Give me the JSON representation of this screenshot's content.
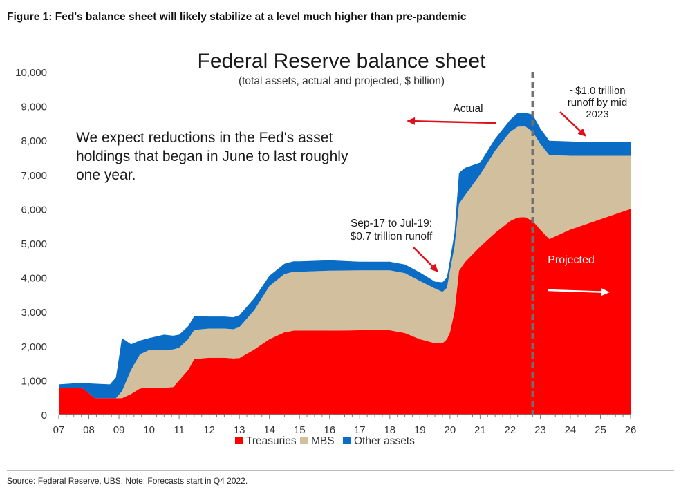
{
  "figure_title": "Figure 1: Fed's balance sheet will likely stabilize at a level much higher than pre-pandemic",
  "source_note": "Source: Federal Reserve, UBS. Note: Forecasts start in Q4 2022.",
  "colors": {
    "treasuries": "#ff0000",
    "mbs": "#d2bf9e",
    "other": "#0a6cc4",
    "arrow": "#e0101a",
    "divider": "#707070"
  },
  "chart_data": {
    "type": "area",
    "stacked": true,
    "title": "Federal Reserve balance sheet",
    "subtitle": "(total assets, actual and projected, $ billion)",
    "xlabel": "",
    "ylabel": "",
    "xlim": [
      2007,
      2026
    ],
    "ylim": [
      0,
      10000
    ],
    "yticks": [
      0,
      1000,
      2000,
      3000,
      4000,
      5000,
      6000,
      7000,
      8000,
      9000,
      10000
    ],
    "ytick_labels": [
      "0",
      "1,000",
      "2,000",
      "3,000",
      "4,000",
      "5,000",
      "6,000",
      "7,000",
      "8,000",
      "9,000",
      "10,000"
    ],
    "xticks": [
      2007,
      2008,
      2009,
      2010,
      2011,
      2012,
      2013,
      2014,
      2015,
      2016,
      2017,
      2018,
      2019,
      2020,
      2021,
      2022,
      2023,
      2024,
      2025,
      2026
    ],
    "xtick_labels": [
      "07",
      "08",
      "09",
      "10",
      "11",
      "12",
      "13",
      "14",
      "15",
      "16",
      "17",
      "18",
      "19",
      "20",
      "21",
      "22",
      "23",
      "24",
      "25",
      "26"
    ],
    "forecast_start": 2022.75,
    "legend": [
      "Treasuries",
      "MBS",
      "Other assets"
    ],
    "legend_position": "bottom",
    "x": [
      2007.0,
      2007.5,
      2007.8,
      2008.2,
      2008.7,
      2008.9,
      2009.1,
      2009.4,
      2009.7,
      2010.0,
      2010.5,
      2010.8,
      2011.0,
      2011.3,
      2011.5,
      2012.0,
      2012.5,
      2012.8,
      2013.0,
      2013.5,
      2014.0,
      2014.5,
      2014.8,
      2015.0,
      2016.0,
      2017.0,
      2018.0,
      2018.5,
      2019.0,
      2019.5,
      2019.75,
      2019.9,
      2020.0,
      2020.15,
      2020.3,
      2020.5,
      2021.0,
      2021.5,
      2022.0,
      2022.25,
      2022.5,
      2022.75,
      2023.0,
      2023.3,
      2024.0,
      2024.5,
      2025.0,
      2026.0
    ],
    "series": [
      {
        "name": "Treasuries",
        "values": [
          780,
          780,
          760,
          480,
          480,
          480,
          480,
          600,
          760,
          780,
          780,
          800,
          1000,
          1300,
          1620,
          1660,
          1660,
          1640,
          1650,
          1900,
          2200,
          2400,
          2450,
          2450,
          2450,
          2460,
          2460,
          2380,
          2200,
          2080,
          2080,
          2200,
          2400,
          3000,
          4200,
          4450,
          4900,
          5300,
          5650,
          5750,
          5760,
          5650,
          5400,
          5120,
          5400,
          5550,
          5700,
          6000
        ]
      },
      {
        "name": "MBS",
        "values": [
          0,
          0,
          0,
          0,
          0,
          0,
          200,
          700,
          1000,
          1100,
          1100,
          1100,
          950,
          900,
          850,
          850,
          850,
          850,
          900,
          1150,
          1550,
          1700,
          1720,
          1720,
          1750,
          1750,
          1750,
          1750,
          1700,
          1600,
          1500,
          1500,
          1800,
          1900,
          1950,
          1950,
          2100,
          2400,
          2600,
          2650,
          2650,
          2600,
          2500,
          2450,
          2150,
          2000,
          1850,
          1550
        ]
      },
      {
        "name": "Other assets",
        "values": [
          100,
          130,
          160,
          420,
          400,
          600,
          1550,
          750,
          400,
          350,
          450,
          400,
          380,
          380,
          400,
          350,
          350,
          350,
          350,
          350,
          300,
          300,
          300,
          300,
          300,
          250,
          250,
          250,
          250,
          200,
          280,
          300,
          300,
          400,
          900,
          800,
          350,
          350,
          350,
          400,
          400,
          500,
          450,
          420,
          420,
          400,
          400,
          400
        ]
      }
    ],
    "annotations": {
      "expectation": [
        "We expect reductions in the Fed's asset",
        "holdings that began in June to last roughly",
        "one year."
      ],
      "actual": "Actual",
      "projected": "Projected",
      "runoff_2017": [
        "Sep-17 to Jul-19:",
        "$0.7 trillion runoff"
      ],
      "runoff_2023": [
        "~$1.0 trillion",
        "runoff by mid",
        "2023"
      ]
    }
  }
}
